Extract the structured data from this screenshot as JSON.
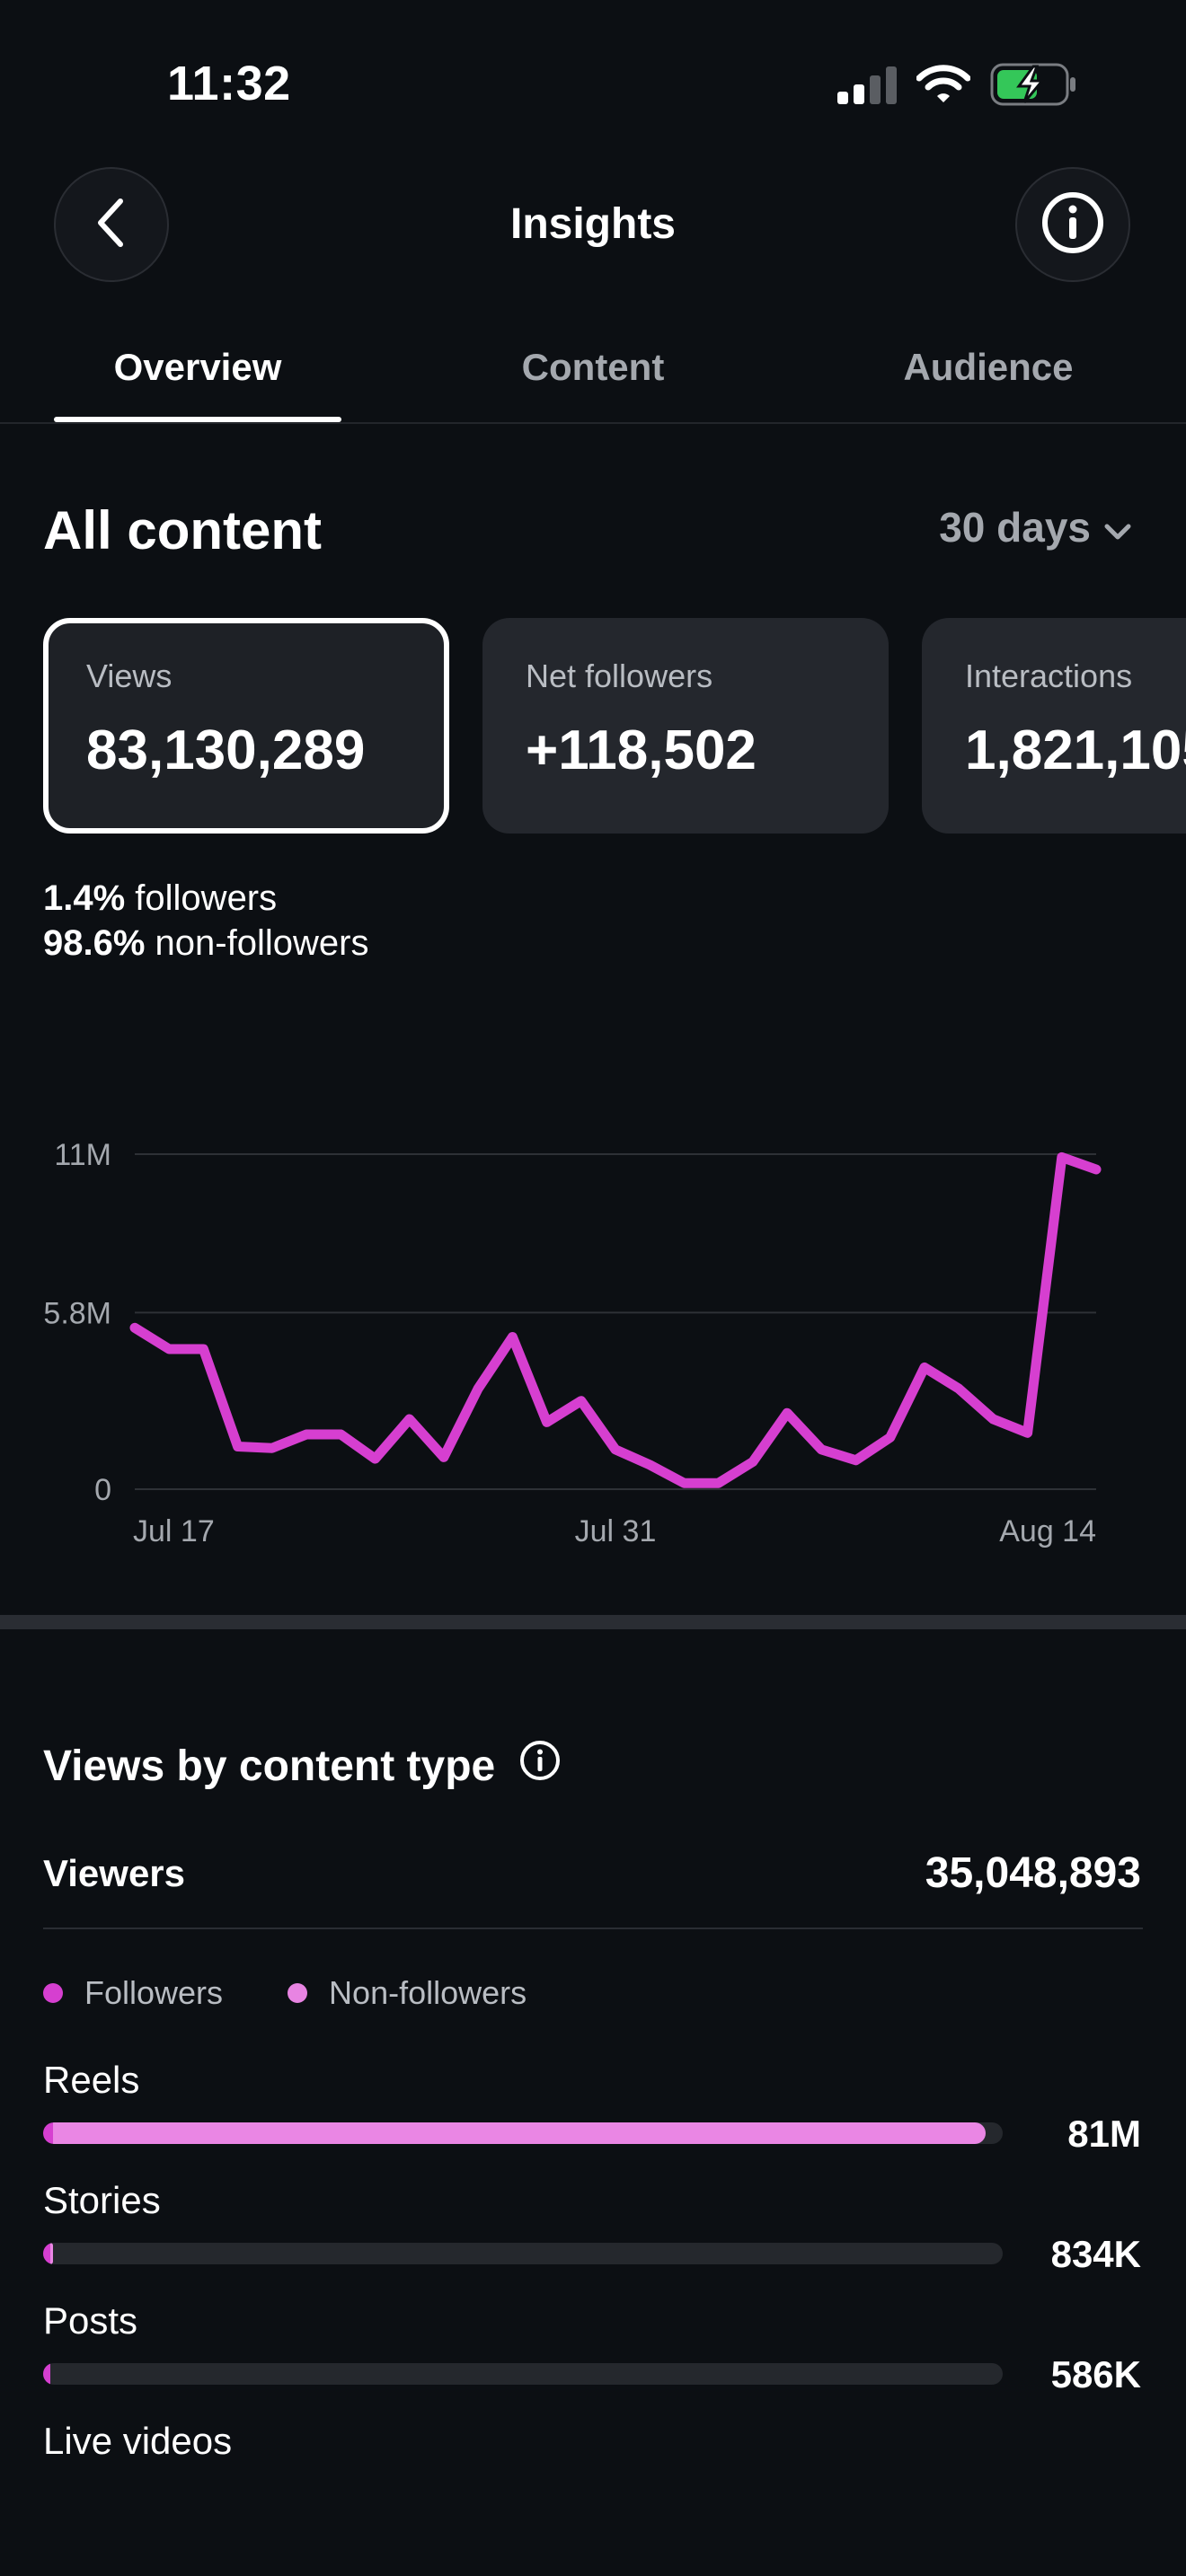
{
  "status_bar": {
    "time": "11:32",
    "icons": [
      "cellular-signal-icon",
      "wifi-icon",
      "battery-charging-icon"
    ]
  },
  "header": {
    "title": "Insights",
    "back_icon": "chevron-left-icon",
    "info_icon": "info-icon"
  },
  "tabs": [
    {
      "label": "Overview",
      "active": true
    },
    {
      "label": "Content",
      "active": false
    },
    {
      "label": "Audience",
      "active": false
    }
  ],
  "summary": {
    "title": "All content",
    "range_label": "30 days",
    "range_icon": "chevron-down-icon",
    "cards": [
      {
        "label": "Views",
        "value": "83,130,289",
        "selected": true
      },
      {
        "label": "Net followers",
        "value": "+118,502",
        "selected": false
      },
      {
        "label": "Interactions",
        "value": "1,821,105",
        "selected": false
      }
    ],
    "split": [
      {
        "pct": "1.4%",
        "label": "followers"
      },
      {
        "pct": "98.6%",
        "label": "non-followers"
      }
    ]
  },
  "chart_data": {
    "type": "line",
    "title": "",
    "xlabel": "",
    "ylabel": "",
    "y_ticks": [
      "11M",
      "5.8M",
      "0"
    ],
    "y_tick_values": [
      11000000,
      5800000,
      0
    ],
    "x_tick_labels": [
      "Jul 17",
      "Jul 31",
      "Aug 14"
    ],
    "x_tick_index": [
      1,
      15,
      29
    ],
    "ylim": [
      0,
      11000000
    ],
    "grid": true,
    "color": "#d63fd0",
    "series": [
      {
        "values": [
          5300000,
          4600000,
          4600000,
          1400000,
          1350000,
          1800000,
          1800000,
          1000000,
          2300000,
          1050000,
          3300000,
          5000000,
          2200000,
          2900000,
          1300000,
          800000,
          200000,
          200000,
          900000,
          2500000,
          1300000,
          950000,
          1700000,
          4000000,
          3300000,
          2300000,
          1850000,
          10900000,
          10500000
        ]
      }
    ]
  },
  "content_type": {
    "title": "Views by content type",
    "info_icon": "info-icon",
    "viewers_label": "Viewers",
    "viewers_value": "35,048,893",
    "legend": [
      {
        "label": "Followers",
        "color": "#d63fd0"
      },
      {
        "label": "Non-followers",
        "color": "#e884e2"
      }
    ],
    "colors": {
      "followers": "#d63fd0",
      "non_followers": "#ea86e4",
      "track": "#25282d"
    },
    "rows": [
      {
        "label": "Reels",
        "value": "81M",
        "followers_fraction": 0.01,
        "total_fraction": 0.982
      },
      {
        "label": "Stories",
        "value": "834K",
        "followers_fraction": 0.002,
        "total_fraction": 0.01
      },
      {
        "label": "Posts",
        "value": "586K",
        "followers_fraction": 0.002,
        "total_fraction": 0.007
      },
      {
        "label": "Live videos",
        "value": "",
        "followers_fraction": 0,
        "total_fraction": 0
      }
    ]
  }
}
